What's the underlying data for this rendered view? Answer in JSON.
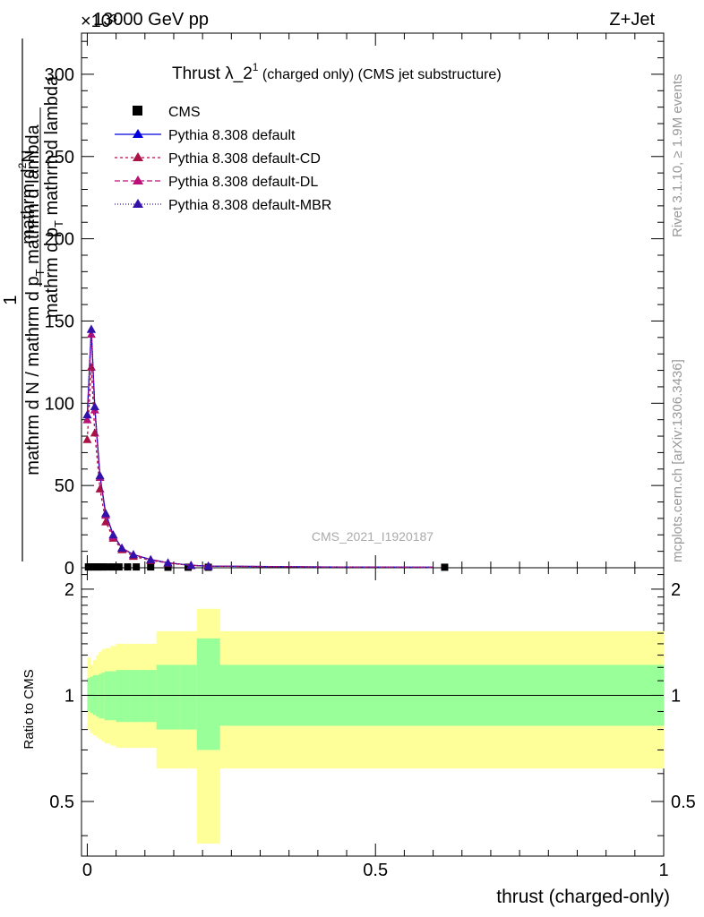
{
  "header": {
    "left": "13000 GeV pp",
    "right": "Z+Jet",
    "exponent": "×10³"
  },
  "side_labels": {
    "rivet": "Rivet 3.1.10, ≥ 1.9M events",
    "mcplots": "mcplots.cern.ch [arXiv:1306.3436]"
  },
  "watermark": "CMS_2021_I1920187",
  "chart_data": [
    {
      "type": "line",
      "title_main": "Thrust λ_2",
      "title_sup": "1",
      "title_rest": " (charged only) (CMS jet substructure)",
      "ylabel_den": "mathrm d N / mathrm d p",
      "ylabel_den_sub": "T",
      "ylabel_den_rest": " mathrm d lambda",
      "ylabel_num_one": "1",
      "ylabel_num": "mathrm d",
      "ylabel_num_sup": "2",
      "ylabel_num_rest": "N",
      "ylabel_frac_rest": "mathrm d p",
      "ylabel_frac_sub": "T",
      "ylabel_frac_tail": " mathrm d lambda",
      "xlim": [
        -0.01,
        1.0
      ],
      "ylim": [
        0,
        325
      ],
      "yticks": [
        0,
        50,
        100,
        150,
        200,
        250,
        300
      ],
      "ytick_labels": [
        "0",
        "50",
        "100",
        "150",
        "200",
        "250",
        "300"
      ],
      "legend_position": "top-left",
      "series": [
        {
          "name": "CMS",
          "color": "#000000",
          "marker": "square",
          "x": [
            0.002,
            0.007,
            0.012,
            0.017,
            0.022,
            0.027,
            0.035,
            0.045,
            0.055,
            0.07,
            0.085,
            0.11,
            0.14,
            0.175,
            0.21,
            0.62
          ],
          "y": [
            0.5,
            0.5,
            0.5,
            0.5,
            0.5,
            0.5,
            0.5,
            0.5,
            0.5,
            0.5,
            0.5,
            0.5,
            0.3,
            0.3,
            0.3,
            0.3
          ]
        },
        {
          "name": "Pythia 8.308 default",
          "color": "#0000dd",
          "dash": "",
          "x": [
            0.0,
            0.007,
            0.013,
            0.022,
            0.032,
            0.045,
            0.06,
            0.08,
            0.11,
            0.14,
            0.18,
            0.21,
            0.4,
            0.6
          ],
          "y": [
            93,
            145,
            98,
            56,
            33,
            20,
            12,
            8,
            5,
            3,
            1.5,
            1,
            0.5,
            0.3
          ]
        },
        {
          "name": "Pythia 8.308 default-CD",
          "color": "#aa1144",
          "dash": "3,3",
          "x": [
            0.0,
            0.007,
            0.013,
            0.022,
            0.032,
            0.045,
            0.06,
            0.08,
            0.11,
            0.14,
            0.18,
            0.21,
            0.4,
            0.6
          ],
          "y": [
            78,
            122,
            82,
            48,
            28,
            18,
            11,
            7,
            4.5,
            2.8,
            1.4,
            1,
            0.5,
            0.3
          ]
        },
        {
          "name": "Pythia 8.308 default-DL",
          "color": "#bb1177",
          "dash": "6,3",
          "x": [
            0.0,
            0.007,
            0.013,
            0.022,
            0.032,
            0.045,
            0.06,
            0.08,
            0.11,
            0.14,
            0.18,
            0.21,
            0.4,
            0.6
          ],
          "y": [
            90,
            142,
            96,
            55,
            32,
            19,
            12,
            8,
            5,
            3,
            1.5,
            1,
            0.5,
            0.3
          ]
        },
        {
          "name": "Pythia 8.308 default-MBR",
          "color": "#3311aa",
          "dash": "1,2",
          "x": [
            0.0,
            0.007,
            0.013,
            0.022,
            0.032,
            0.045,
            0.06,
            0.08,
            0.11,
            0.14,
            0.18,
            0.21,
            0.4,
            0.6
          ],
          "y": [
            93,
            145,
            98,
            56,
            33,
            20,
            12,
            8,
            5,
            3,
            1.5,
            1,
            0.5,
            0.3
          ]
        }
      ]
    },
    {
      "type": "area",
      "ylabel": "Ratio to CMS",
      "xlabel": "thrust (charged-only)",
      "xlim": [
        -0.01,
        1.0
      ],
      "ylim": [
        0.35,
        2.3
      ],
      "yticks": [
        0.5,
        1,
        2
      ],
      "ytick_labels": [
        "0.5",
        "1",
        "2"
      ],
      "xticks": [
        0,
        0.5,
        1
      ],
      "xtick_labels": [
        "0",
        "0.5",
        "1"
      ],
      "band_colors": {
        "outer": "#ffff99",
        "inner": "#99ff99"
      },
      "bins": [
        0.0,
        0.005,
        0.01,
        0.015,
        0.02,
        0.025,
        0.03,
        0.04,
        0.05,
        0.06,
        0.075,
        0.09,
        0.12,
        0.16,
        0.19,
        0.23,
        1.0
      ],
      "outer_lo": [
        0.8,
        0.78,
        0.77,
        0.76,
        0.75,
        0.74,
        0.73,
        0.72,
        0.71,
        0.71,
        0.71,
        0.71,
        0.62,
        0.62,
        0.38,
        0.62
      ],
      "outer_hi": [
        1.28,
        1.22,
        1.26,
        1.3,
        1.33,
        1.35,
        1.36,
        1.38,
        1.4,
        1.4,
        1.4,
        1.4,
        1.52,
        1.52,
        1.76,
        1.52
      ],
      "inner_lo": [
        0.9,
        0.89,
        0.88,
        0.87,
        0.86,
        0.86,
        0.85,
        0.85,
        0.84,
        0.84,
        0.84,
        0.84,
        0.8,
        0.8,
        0.7,
        0.82
      ],
      "inner_hi": [
        1.12,
        1.13,
        1.14,
        1.14,
        1.15,
        1.16,
        1.17,
        1.17,
        1.18,
        1.18,
        1.18,
        1.18,
        1.22,
        1.22,
        1.45,
        1.22
      ]
    }
  ]
}
